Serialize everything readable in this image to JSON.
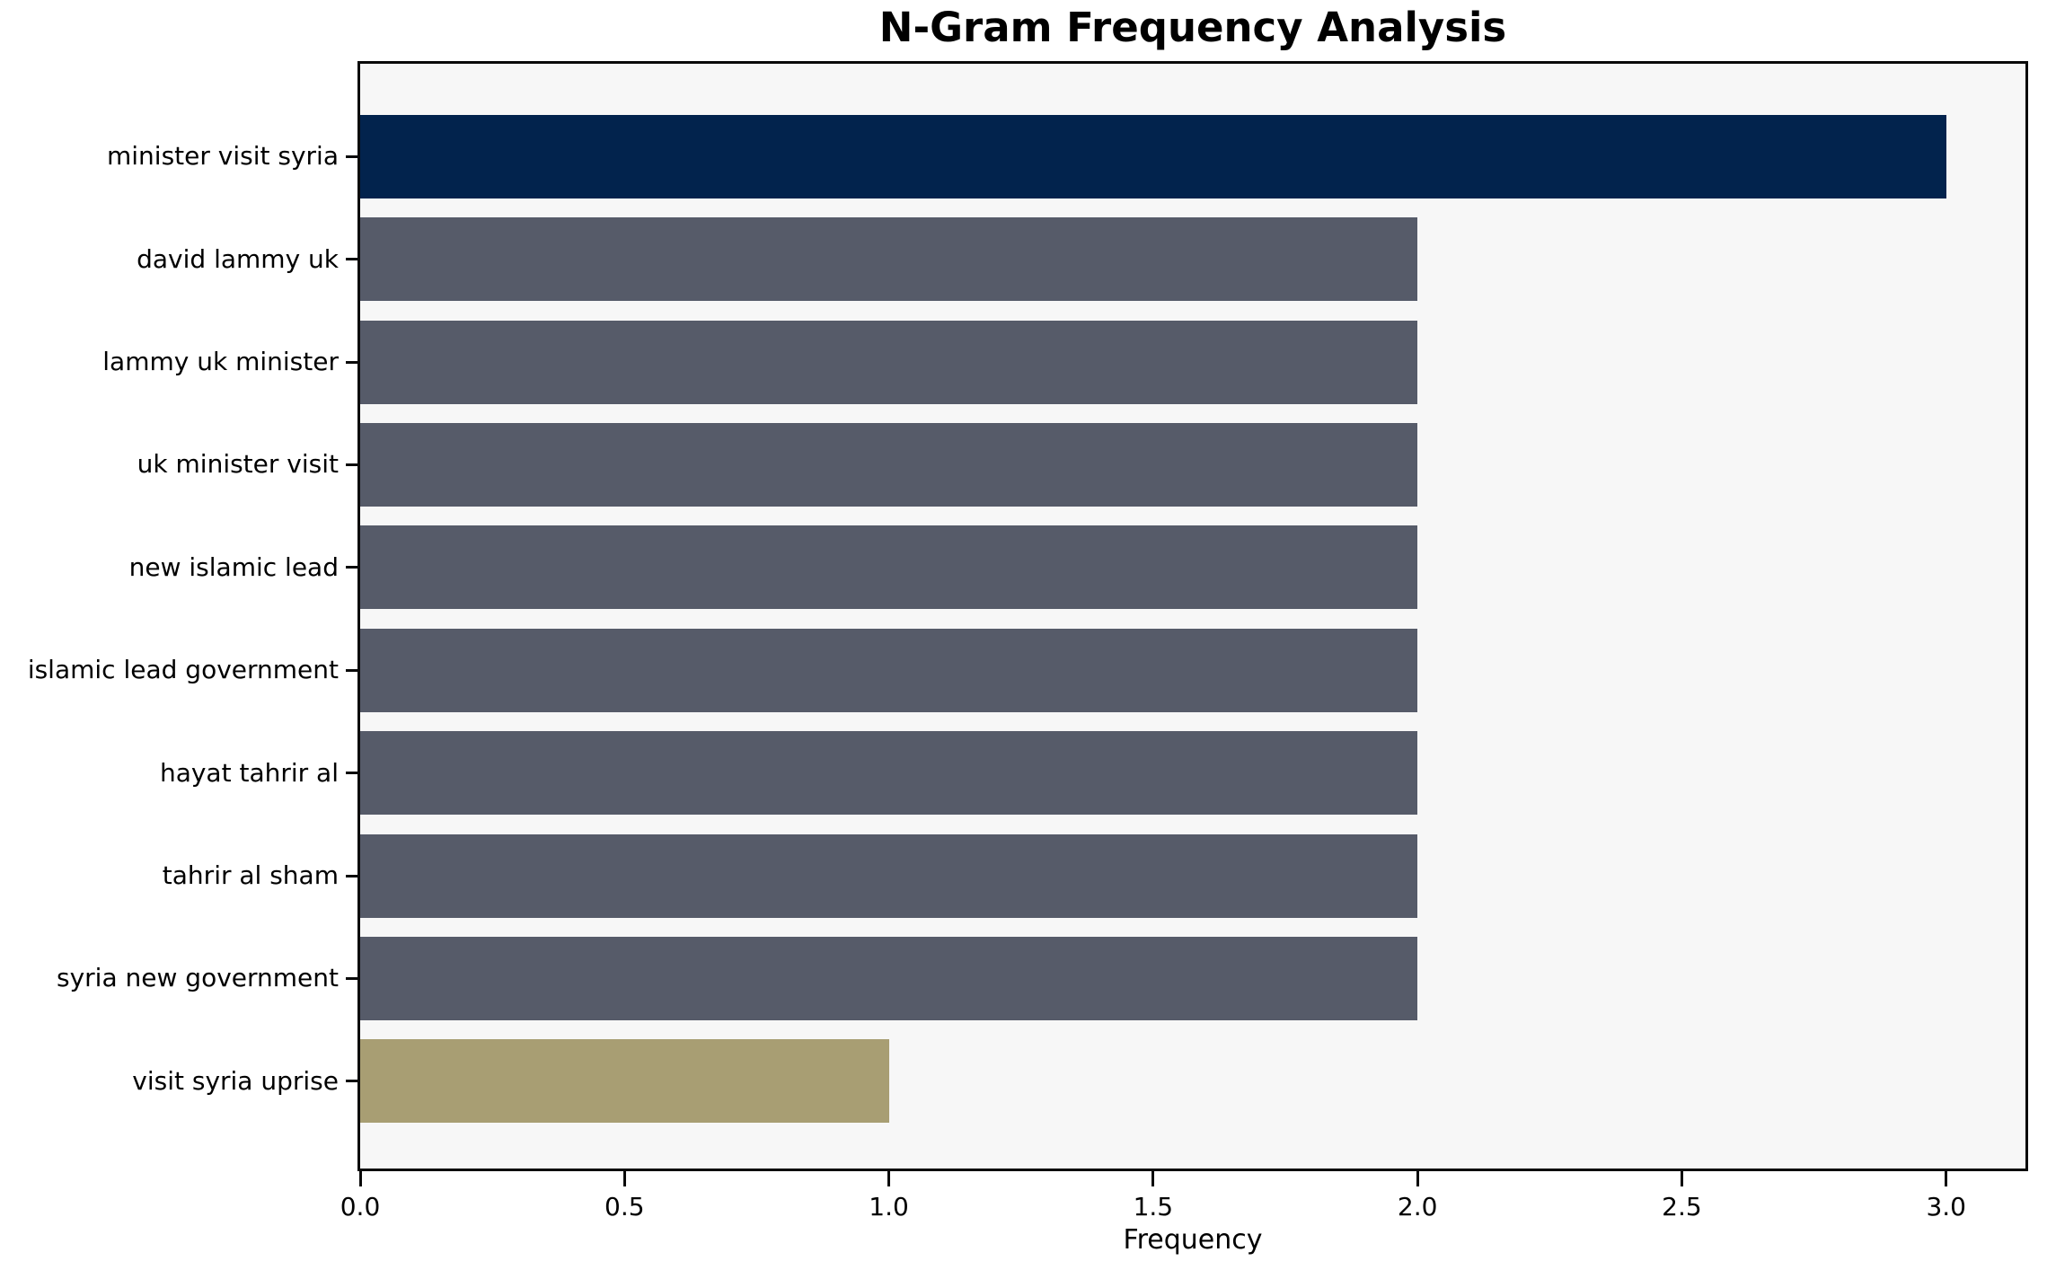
{
  "chart_data": {
    "type": "bar",
    "orientation": "horizontal",
    "title": "N-Gram Frequency Analysis",
    "xlabel": "Frequency",
    "ylabel": "",
    "categories": [
      "minister visit syria",
      "david lammy uk",
      "lammy uk minister",
      "uk minister visit",
      "new islamic lead",
      "islamic lead government",
      "hayat tahrir al",
      "tahrir al sham",
      "syria new government",
      "visit syria uprise"
    ],
    "values": [
      3,
      2,
      2,
      2,
      2,
      2,
      2,
      2,
      2,
      1
    ],
    "bar_colors": [
      "#02234d",
      "#565b69",
      "#565b69",
      "#565b69",
      "#565b69",
      "#565b69",
      "#565b69",
      "#565b69",
      "#565b69",
      "#a89e73"
    ],
    "xticks": [
      0.0,
      0.5,
      1.0,
      1.5,
      2.0,
      2.5,
      3.0
    ],
    "xtick_labels": [
      "0.0",
      "0.5",
      "1.0",
      "1.5",
      "2.0",
      "2.5",
      "3.0"
    ],
    "xlim": [
      0,
      3.15
    ],
    "grid": false,
    "legend_position": "none",
    "plot_background": "#f7f7f7",
    "figure_background": "#ffffff",
    "spine_color": "#0a0a0a",
    "text_color": "#000000"
  }
}
